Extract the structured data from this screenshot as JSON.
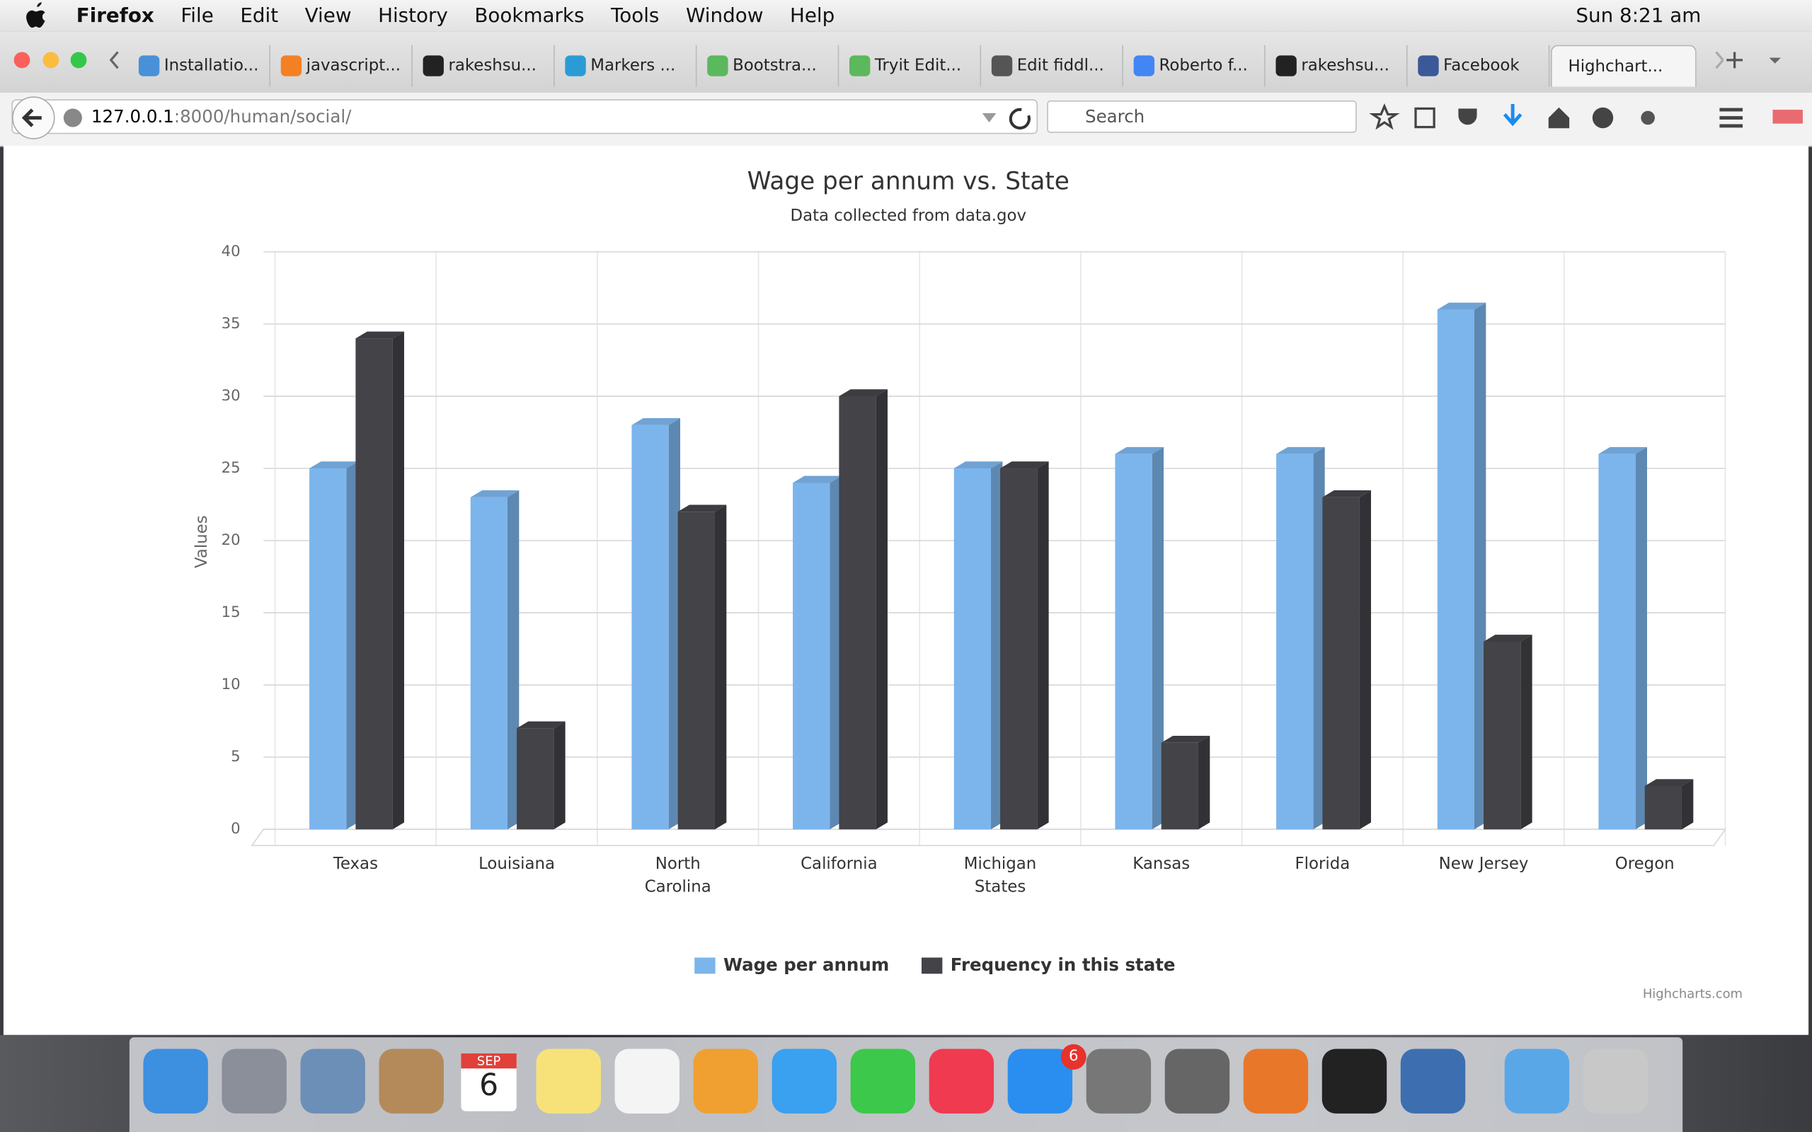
{
  "menu_bar": {
    "app": "Firefox",
    "items": [
      "File",
      "Edit",
      "View",
      "History",
      "Bookmarks",
      "Tools",
      "Window",
      "Help"
    ],
    "clock": "Sun 8:21 am"
  },
  "tabs": [
    "Installatio...",
    "javascript...",
    "rakeshsu...",
    "Markers ...",
    "Bootstra...",
    "Tryit Edit...",
    "Edit fiddl...",
    "Roberto f...",
    "rakeshsu...",
    "Facebook",
    "Highchart..."
  ],
  "address_bar": {
    "host": "127.0.0.1",
    "path": ":8000/human/social/",
    "search_placeholder": "Search"
  },
  "chart_data": {
    "type": "bar",
    "title": "Wage per annum vs. State",
    "subtitle": "Data collected from data.gov",
    "y_label": "Values",
    "credits": "Highcharts.com",
    "categories": [
      "Texas",
      "Louisiana",
      "North Carolina",
      "California",
      "Michigan States",
      "Kansas",
      "Florida",
      "New Jersey",
      "Oregon"
    ],
    "series": [
      {
        "name": "Wage per annum",
        "color": "#7cb5ec",
        "values": [
          25,
          23,
          28,
          24,
          25,
          26,
          26,
          36,
          26
        ]
      },
      {
        "name": "Frequency in this state",
        "color": "#434348",
        "values": [
          34,
          7,
          22,
          30,
          25,
          6,
          23,
          13,
          3
        ]
      }
    ],
    "ylim": [
      0,
      40
    ],
    "yticks": [
      0,
      5,
      10,
      15,
      20,
      25,
      30,
      35,
      40
    ],
    "grid": true,
    "legend": "bottom"
  },
  "dock": {
    "calendar_month": "SEP",
    "calendar_day": "6",
    "badge": "6"
  }
}
